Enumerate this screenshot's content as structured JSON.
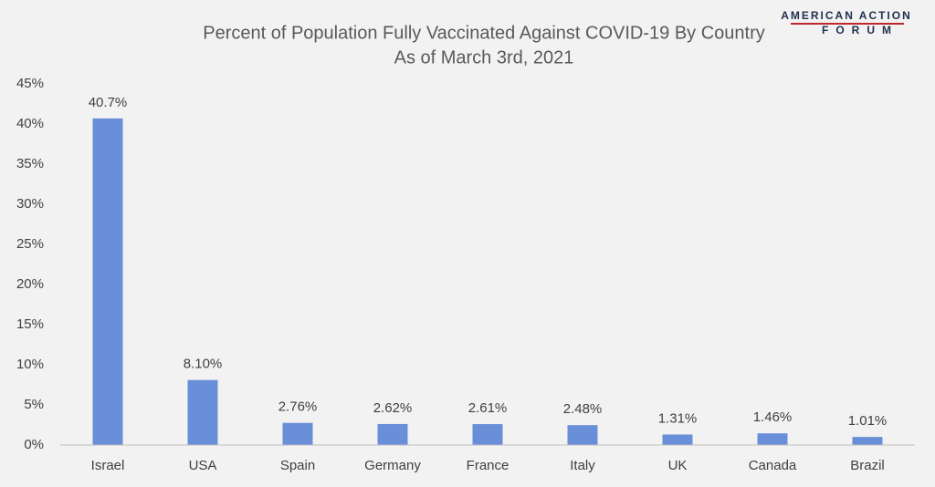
{
  "chart_data": {
    "type": "bar",
    "title": "Percent of Population Fully Vaccinated Against COVID-19 By Country",
    "subtitle": "As of March 3rd, 2021",
    "logo": {
      "top": "AMERICAN ACTION",
      "bottom": "FORUM"
    },
    "categories": [
      "Israel",
      "USA",
      "Spain",
      "Germany",
      "France",
      "Italy",
      "UK",
      "Canada",
      "Brazil"
    ],
    "values": [
      40.7,
      8.1,
      2.76,
      2.62,
      2.61,
      2.48,
      1.31,
      1.46,
      1.01
    ],
    "value_labels": [
      "40.7%",
      "8.10%",
      "2.76%",
      "2.62%",
      "2.61%",
      "2.48%",
      "1.31%",
      "1.46%",
      "1.01%"
    ],
    "color": "#6a8fd9",
    "ylim": [
      0,
      45
    ],
    "yticks": [
      {
        "value": 0,
        "label": "0%"
      },
      {
        "value": 5,
        "label": "5%"
      },
      {
        "value": 10,
        "label": "10%"
      },
      {
        "value": 15,
        "label": "15%"
      },
      {
        "value": 20,
        "label": "20%"
      },
      {
        "value": 25,
        "label": "25%"
      },
      {
        "value": 30,
        "label": "30%"
      },
      {
        "value": 35,
        "label": "35%"
      },
      {
        "value": 40,
        "label": "40%"
      },
      {
        "value": 45,
        "label": "45%"
      }
    ],
    "grid": false
  }
}
